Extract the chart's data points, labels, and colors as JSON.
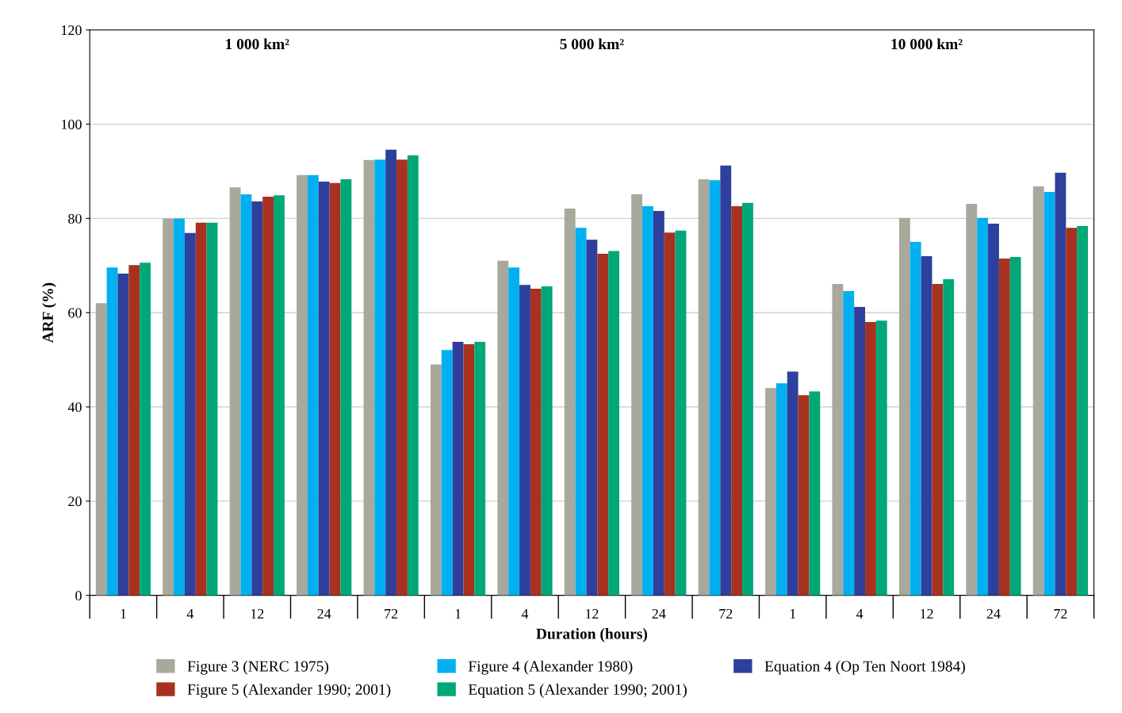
{
  "chart_data": {
    "type": "bar",
    "xlabel": "Duration (hours)",
    "ylabel": "ARF (%)",
    "categories": [
      "1",
      "4",
      "12",
      "24",
      "72",
      "1",
      "4",
      "12",
      "24",
      "72",
      "1",
      "4",
      "12",
      "24",
      "72"
    ],
    "series": [
      {
        "name": "Figure 3 (NERC 1975)",
        "color": "#a8a89c",
        "values": [
          62.0,
          80.0,
          86.6,
          89.2,
          92.4,
          49.0,
          71.0,
          82.1,
          85.1,
          88.3,
          44.0,
          66.1,
          80.1,
          83.1,
          86.8
        ]
      },
      {
        "name": "Figure 4 (Alexander 1980)",
        "color": "#00b0f0",
        "values": [
          69.6,
          80.0,
          85.1,
          89.2,
          92.5,
          52.1,
          69.6,
          78.0,
          82.6,
          88.1,
          45.0,
          64.6,
          75.0,
          80.1,
          85.6
        ]
      },
      {
        "name": "Equation 4 (Op Ten Noort 1984)",
        "color": "#2e3f9c",
        "values": [
          68.3,
          76.9,
          83.6,
          87.8,
          94.6,
          53.8,
          65.9,
          75.5,
          81.6,
          91.2,
          47.5,
          61.2,
          72.0,
          78.9,
          89.7
        ]
      },
      {
        "name": "Figure 5 (Alexander 1990; 2001)",
        "color": "#a83220",
        "values": [
          70.1,
          79.1,
          84.6,
          87.5,
          92.5,
          53.3,
          65.1,
          72.5,
          77.0,
          82.6,
          42.5,
          58.0,
          66.1,
          71.5,
          78.0
        ]
      },
      {
        "name": "Equation 5 (Alexander 1990; 2001)",
        "color": "#00a878",
        "values": [
          70.6,
          79.1,
          84.9,
          88.3,
          93.4,
          53.8,
          65.6,
          73.1,
          77.4,
          83.3,
          43.3,
          58.3,
          67.1,
          71.8,
          78.4
        ]
      }
    ],
    "annotations": [
      "1 000 km²",
      "5 000 km²",
      "10 000 km²"
    ],
    "ylim": [
      0,
      120
    ],
    "yticks": [
      0,
      20,
      40,
      60,
      80,
      100,
      120
    ],
    "grid": "y",
    "legend": "bottom"
  }
}
